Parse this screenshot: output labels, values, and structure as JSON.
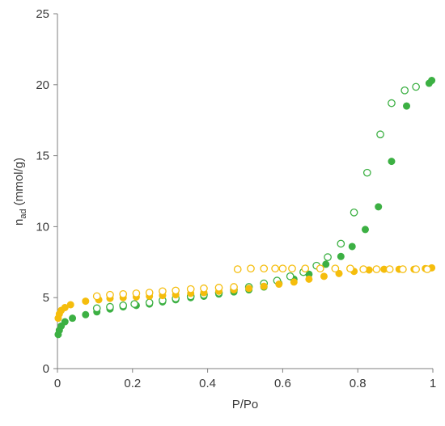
{
  "chart_data": {
    "type": "scatter",
    "xlabel": "P/Po",
    "ylabel_main": "n",
    "ylabel_sub": "ad",
    "ylabel_unit": " (mmol/g)",
    "xlim": [
      0,
      1
    ],
    "ylim": [
      0,
      25
    ],
    "x_ticks": [
      0,
      0.2,
      0.4,
      0.6,
      0.8,
      1
    ],
    "x_tick_labels": [
      "0",
      "0.2",
      "0.4",
      "0.6",
      "0.8",
      "1"
    ],
    "y_ticks": [
      0,
      5,
      10,
      15,
      20,
      25
    ],
    "y_tick_labels": [
      "0",
      "5",
      "10",
      "15",
      "20",
      "25"
    ],
    "grid": false,
    "legend": "none",
    "series": [
      {
        "color": "#3cb043",
        "marker": "filled",
        "points": [
          [
            0.002,
            2.4
          ],
          [
            0.005,
            2.7
          ],
          [
            0.01,
            3.0
          ],
          [
            0.02,
            3.3
          ],
          [
            0.04,
            3.55
          ],
          [
            0.075,
            3.8
          ],
          [
            0.105,
            4.0
          ],
          [
            0.14,
            4.2
          ],
          [
            0.175,
            4.35
          ],
          [
            0.21,
            4.45
          ],
          [
            0.245,
            4.55
          ],
          [
            0.28,
            4.7
          ],
          [
            0.315,
            4.85
          ],
          [
            0.355,
            5.0
          ],
          [
            0.39,
            5.1
          ],
          [
            0.43,
            5.25
          ],
          [
            0.47,
            5.4
          ],
          [
            0.51,
            5.55
          ],
          [
            0.55,
            5.75
          ],
          [
            0.59,
            6.0
          ],
          [
            0.63,
            6.3
          ],
          [
            0.67,
            6.65
          ],
          [
            0.715,
            7.35
          ],
          [
            0.755,
            7.9
          ],
          [
            0.785,
            8.6
          ],
          [
            0.82,
            9.8
          ],
          [
            0.855,
            11.4
          ],
          [
            0.89,
            14.6
          ],
          [
            0.93,
            18.5
          ],
          [
            0.99,
            20.1
          ],
          [
            0.997,
            20.3
          ]
        ]
      },
      {
        "color": "#3cb043",
        "marker": "open",
        "points": [
          [
            0.105,
            4.25
          ],
          [
            0.14,
            4.35
          ],
          [
            0.175,
            4.45
          ],
          [
            0.205,
            4.55
          ],
          [
            0.245,
            4.65
          ],
          [
            0.28,
            4.8
          ],
          [
            0.315,
            4.95
          ],
          [
            0.355,
            5.1
          ],
          [
            0.39,
            5.2
          ],
          [
            0.43,
            5.35
          ],
          [
            0.47,
            5.55
          ],
          [
            0.51,
            5.75
          ],
          [
            0.55,
            6.0
          ],
          [
            0.585,
            6.2
          ],
          [
            0.62,
            6.5
          ],
          [
            0.655,
            6.8
          ],
          [
            0.69,
            7.25
          ],
          [
            0.72,
            7.85
          ],
          [
            0.755,
            8.8
          ],
          [
            0.79,
            11.0
          ],
          [
            0.825,
            13.8
          ],
          [
            0.86,
            16.5
          ],
          [
            0.89,
            18.7
          ],
          [
            0.925,
            19.6
          ],
          [
            0.955,
            19.85
          ]
        ]
      },
      {
        "color": "#f5bd0c",
        "marker": "filled",
        "points": [
          [
            0.002,
            3.55
          ],
          [
            0.005,
            3.85
          ],
          [
            0.01,
            4.1
          ],
          [
            0.02,
            4.3
          ],
          [
            0.035,
            4.5
          ],
          [
            0.075,
            4.75
          ],
          [
            0.11,
            4.85
          ],
          [
            0.14,
            4.95
          ],
          [
            0.175,
            5.0
          ],
          [
            0.21,
            5.05
          ],
          [
            0.245,
            5.1
          ],
          [
            0.28,
            5.15
          ],
          [
            0.315,
            5.2
          ],
          [
            0.355,
            5.3
          ],
          [
            0.39,
            5.35
          ],
          [
            0.43,
            5.45
          ],
          [
            0.47,
            5.55
          ],
          [
            0.51,
            5.65
          ],
          [
            0.55,
            5.8
          ],
          [
            0.59,
            5.95
          ],
          [
            0.63,
            6.1
          ],
          [
            0.67,
            6.3
          ],
          [
            0.71,
            6.5
          ],
          [
            0.75,
            6.7
          ],
          [
            0.79,
            6.85
          ],
          [
            0.83,
            6.95
          ],
          [
            0.87,
            7.0
          ],
          [
            0.91,
            7.0
          ],
          [
            0.95,
            7.0
          ],
          [
            0.98,
            7.05
          ],
          [
            0.997,
            7.1
          ]
        ]
      },
      {
        "color": "#f5bd0c",
        "marker": "open",
        "points": [
          [
            0.105,
            5.1
          ],
          [
            0.14,
            5.2
          ],
          [
            0.175,
            5.25
          ],
          [
            0.21,
            5.3
          ],
          [
            0.245,
            5.35
          ],
          [
            0.28,
            5.45
          ],
          [
            0.315,
            5.5
          ],
          [
            0.355,
            5.6
          ],
          [
            0.39,
            5.65
          ],
          [
            0.43,
            5.7
          ],
          [
            0.47,
            5.75
          ],
          [
            0.48,
            7.0
          ],
          [
            0.515,
            7.05
          ],
          [
            0.55,
            7.05
          ],
          [
            0.58,
            7.05
          ],
          [
            0.6,
            7.05
          ],
          [
            0.625,
            7.05
          ],
          [
            0.66,
            7.05
          ],
          [
            0.7,
            7.05
          ],
          [
            0.74,
            7.05
          ],
          [
            0.78,
            7.05
          ],
          [
            0.815,
            7.0
          ],
          [
            0.85,
            7.0
          ],
          [
            0.885,
            7.0
          ],
          [
            0.92,
            7.0
          ],
          [
            0.955,
            7.0
          ],
          [
            0.985,
            7.0
          ]
        ]
      }
    ]
  }
}
